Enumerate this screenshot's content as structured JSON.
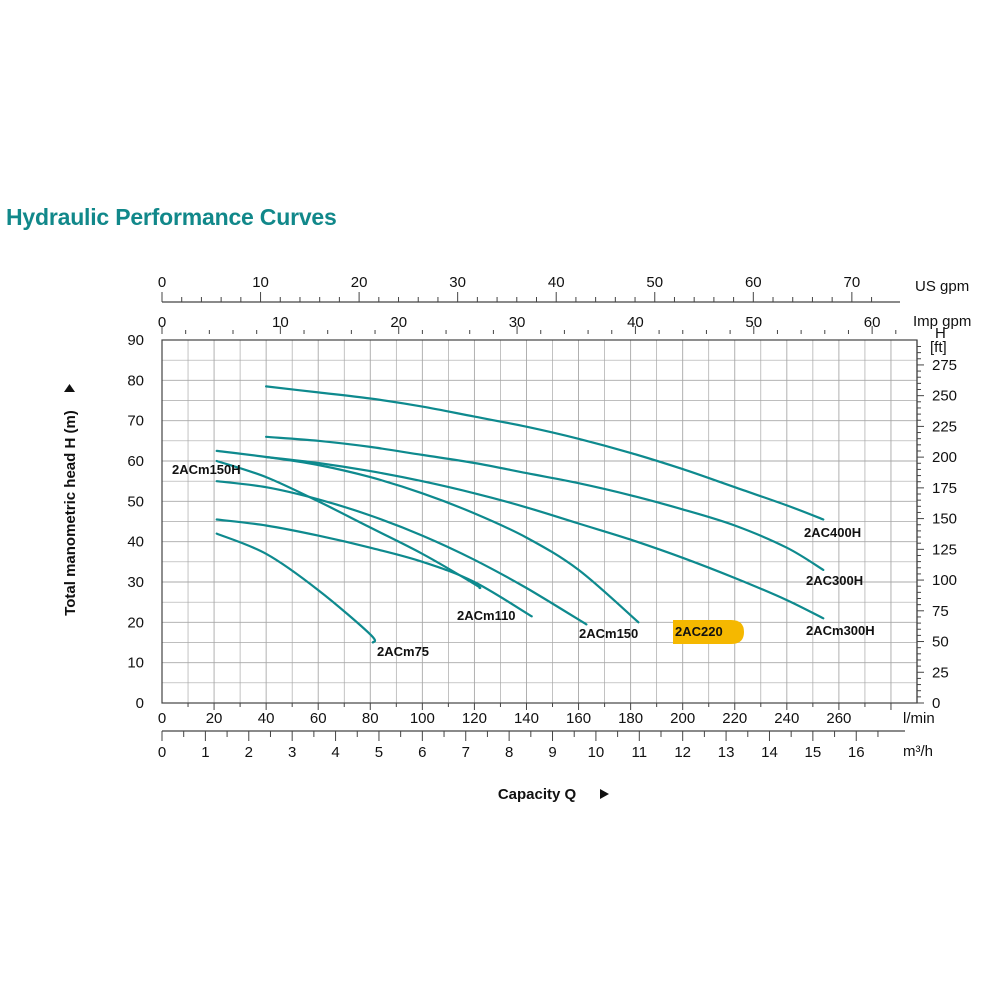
{
  "page": {
    "title": "Hydraulic Performance Curves"
  },
  "chart_data": {
    "type": "line",
    "title": "",
    "xlabel": "Capacity Q",
    "ylabel": "Total manometric head H (m)",
    "grid": true,
    "x_unit": "l/min",
    "y_unit": "m",
    "xlim": [
      0,
      290
    ],
    "ylim": [
      0,
      90
    ],
    "x_ticks": [
      0,
      20,
      40,
      60,
      80,
      100,
      120,
      140,
      160,
      180,
      200,
      220,
      240,
      260
    ],
    "y_ticks": [
      0,
      10,
      20,
      30,
      40,
      50,
      60,
      70,
      80,
      90
    ],
    "axis_units": {
      "usgpm": "US gpm",
      "impgpm": "Imp gpm",
      "lmin": "l/min",
      "m3h": "m³/h",
      "ft_letter": "H",
      "ft": "[ft]"
    },
    "us_gpm_ticks": [
      0,
      10,
      20,
      30,
      40,
      50,
      60,
      70
    ],
    "imp_gpm_ticks": [
      0,
      10,
      20,
      30,
      40,
      50,
      60
    ],
    "m3h_ticks": [
      0,
      1,
      2,
      3,
      4,
      5,
      6,
      7,
      8,
      9,
      10,
      11,
      12,
      13,
      14,
      15,
      16
    ],
    "ft_ticks": [
      0,
      25,
      50,
      75,
      100,
      125,
      150,
      175,
      200,
      225,
      250,
      275
    ],
    "series": [
      {
        "name": "2ACm75",
        "color": "#0e8a8e",
        "x": [
          21,
          40,
          60,
          80,
          81
        ],
        "y": [
          42,
          37,
          28,
          17,
          15
        ]
      },
      {
        "name": "2ACm110",
        "color": "#0e8a8e",
        "x": [
          21,
          40,
          60,
          80,
          100,
          120,
          142
        ],
        "y": [
          45.5,
          44,
          41.5,
          38.5,
          35,
          30,
          21.5
        ]
      },
      {
        "name": "2ACm150H",
        "color": "#0e8a8e",
        "x": [
          21,
          40,
          60,
          80,
          100,
          120,
          122
        ],
        "y": [
          60,
          56,
          50,
          43.5,
          37,
          29.5,
          28.5
        ]
      },
      {
        "name": "2ACm150",
        "color": "#0e8a8e",
        "x": [
          21,
          40,
          60,
          80,
          100,
          120,
          140,
          163
        ],
        "y": [
          55,
          53.5,
          50.5,
          46.5,
          41.5,
          35.5,
          28.5,
          19.5
        ]
      },
      {
        "name": "2AC220",
        "color": "#0e8a8e",
        "x": [
          21,
          40,
          60,
          80,
          100,
          120,
          140,
          160,
          183
        ],
        "y": [
          62.5,
          61,
          59,
          56,
          52,
          47,
          41,
          33,
          20
        ]
      },
      {
        "name": "2ACm300H",
        "color": "#0e8a8e",
        "x": [
          40,
          60,
          80,
          100,
          120,
          140,
          160,
          180,
          200,
          220,
          240,
          254
        ],
        "y": [
          61,
          59.5,
          57.5,
          55,
          52,
          48.5,
          44.5,
          40.5,
          36,
          31,
          25.5,
          21
        ]
      },
      {
        "name": "2AC300H",
        "color": "#0e8a8e",
        "x": [
          40,
          60,
          80,
          100,
          120,
          140,
          160,
          180,
          200,
          220,
          240,
          254
        ],
        "y": [
          66,
          65,
          63.5,
          61.5,
          59.5,
          57,
          54.5,
          51.5,
          48,
          44,
          38.5,
          33
        ]
      },
      {
        "name": "2AC400H",
        "color": "#0e8a8e",
        "x": [
          40,
          60,
          80,
          100,
          120,
          140,
          160,
          180,
          200,
          220,
          240,
          254
        ],
        "y": [
          78.5,
          77,
          75.5,
          73.5,
          71,
          68.5,
          65.5,
          62,
          58,
          53.5,
          49,
          45.5
        ]
      }
    ],
    "highlight": {
      "label": "2AC220",
      "color": "#f5b800"
    }
  }
}
